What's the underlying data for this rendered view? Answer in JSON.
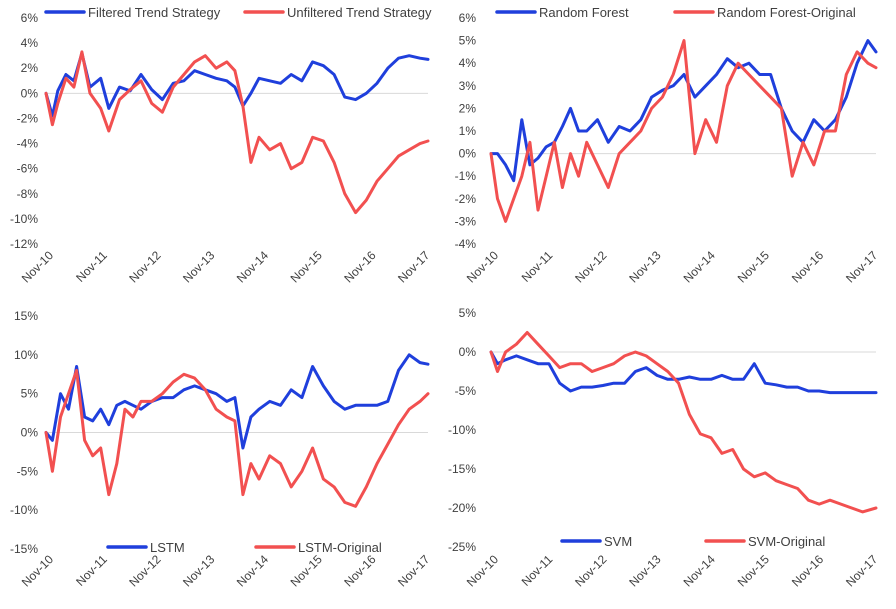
{
  "colors": {
    "blue": "#1f3fdc",
    "red": "#f25050",
    "zero_line": "#d9d9d9",
    "text": "#404040"
  },
  "chart_data": [
    {
      "type": "line",
      "title": "",
      "xlabel": "",
      "ylabel": "",
      "x_ticks": [
        "Nov-10",
        "Nov-11",
        "Nov-12",
        "Nov-13",
        "Nov-14",
        "Nov-15",
        "Nov-16",
        "Nov-17"
      ],
      "y_ticks": [
        "6%",
        "4%",
        "2%",
        "0%",
        "-2%",
        "-4%",
        "-6%",
        "-8%",
        "-10%",
        "-12%"
      ],
      "ylim": [
        -12,
        6
      ],
      "xlim": [
        2010.83,
        2017.95
      ],
      "legend_position": "top",
      "series": [
        {
          "name": "Filtered Trend Strategy",
          "color": "#1f3fdc",
          "x": [
            2010.83,
            2010.95,
            2011.05,
            2011.2,
            2011.35,
            2011.5,
            2011.65,
            2011.85,
            2012.0,
            2012.2,
            2012.4,
            2012.6,
            2012.8,
            2013.0,
            2013.2,
            2013.4,
            2013.6,
            2013.8,
            2014.0,
            2014.2,
            2014.35,
            2014.5,
            2014.65,
            2014.8,
            2015.0,
            2015.2,
            2015.4,
            2015.6,
            2015.8,
            2016.0,
            2016.2,
            2016.4,
            2016.6,
            2016.8,
            2017.0,
            2017.2,
            2017.4,
            2017.6,
            2017.8,
            2017.95
          ],
          "y": [
            0.0,
            -1.8,
            0.2,
            1.5,
            1.0,
            3.2,
            0.5,
            1.2,
            -1.2,
            0.5,
            0.2,
            1.5,
            0.3,
            -0.5,
            0.8,
            1.0,
            1.8,
            1.5,
            1.2,
            1.0,
            0.5,
            -1.0,
            0.0,
            1.2,
            1.0,
            0.8,
            1.5,
            1.0,
            2.5,
            2.2,
            1.5,
            -0.3,
            -0.5,
            0.0,
            0.8,
            2.0,
            2.8,
            3.0,
            2.8,
            2.7
          ]
        },
        {
          "name": "Unfiltered Trend Strategy",
          "color": "#f25050",
          "x": [
            2010.83,
            2010.95,
            2011.05,
            2011.2,
            2011.35,
            2011.5,
            2011.65,
            2011.85,
            2012.0,
            2012.2,
            2012.4,
            2012.6,
            2012.8,
            2013.0,
            2013.2,
            2013.4,
            2013.6,
            2013.8,
            2014.0,
            2014.2,
            2014.35,
            2014.5,
            2014.65,
            2014.8,
            2015.0,
            2015.2,
            2015.4,
            2015.6,
            2015.8,
            2016.0,
            2016.2,
            2016.4,
            2016.6,
            2016.8,
            2017.0,
            2017.2,
            2017.4,
            2017.6,
            2017.8,
            2017.95
          ],
          "y": [
            0.0,
            -2.5,
            -0.8,
            1.2,
            0.5,
            3.3,
            0.0,
            -1.2,
            -3.0,
            -0.5,
            0.3,
            1.0,
            -0.8,
            -1.5,
            0.5,
            1.5,
            2.5,
            3.0,
            2.0,
            2.5,
            1.8,
            -1.0,
            -5.5,
            -3.5,
            -4.5,
            -4.0,
            -6.0,
            -5.5,
            -3.5,
            -3.8,
            -5.5,
            -8.0,
            -9.5,
            -8.5,
            -7.0,
            -6.0,
            -5.0,
            -4.5,
            -4.0,
            -3.8
          ]
        }
      ]
    },
    {
      "type": "line",
      "title": "",
      "xlabel": "",
      "ylabel": "",
      "x_ticks": [
        "Nov-10",
        "Nov-11",
        "Nov-12",
        "Nov-13",
        "Nov-14",
        "Nov-15",
        "Nov-16",
        "Nov-17"
      ],
      "y_ticks": [
        "6%",
        "5%",
        "4%",
        "3%",
        "2%",
        "1%",
        "0%",
        "-1%",
        "-2%",
        "-3%",
        "-4%"
      ],
      "ylim": [
        -4,
        6
      ],
      "xlim": [
        2010.83,
        2017.95
      ],
      "legend_position": "top",
      "series": [
        {
          "name": "Random Forest",
          "color": "#1f3fdc",
          "x": [
            2010.83,
            2010.95,
            2011.1,
            2011.25,
            2011.4,
            2011.55,
            2011.7,
            2011.85,
            2012.0,
            2012.15,
            2012.3,
            2012.45,
            2012.6,
            2012.8,
            2013.0,
            2013.2,
            2013.4,
            2013.6,
            2013.8,
            2014.0,
            2014.2,
            2014.4,
            2014.6,
            2014.8,
            2015.0,
            2015.2,
            2015.4,
            2015.6,
            2015.8,
            2016.0,
            2016.2,
            2016.4,
            2016.6,
            2016.8,
            2017.0,
            2017.2,
            2017.4,
            2017.6,
            2017.8,
            2017.95
          ],
          "y": [
            0.0,
            0.0,
            -0.5,
            -1.2,
            1.5,
            -0.5,
            -0.2,
            0.3,
            0.5,
            1.2,
            2.0,
            1.0,
            1.0,
            1.5,
            0.5,
            1.2,
            1.0,
            1.5,
            2.5,
            2.8,
            3.0,
            3.5,
            2.5,
            3.0,
            3.5,
            4.2,
            3.8,
            4.0,
            3.5,
            3.5,
            2.0,
            1.0,
            0.5,
            1.5,
            1.0,
            1.5,
            2.5,
            4.0,
            5.0,
            4.5
          ]
        },
        {
          "name": "Random Forest-Original",
          "color": "#f25050",
          "x": [
            2010.83,
            2010.95,
            2011.1,
            2011.25,
            2011.4,
            2011.55,
            2011.7,
            2011.85,
            2012.0,
            2012.15,
            2012.3,
            2012.45,
            2012.6,
            2012.8,
            2013.0,
            2013.2,
            2013.4,
            2013.6,
            2013.8,
            2014.0,
            2014.2,
            2014.4,
            2014.6,
            2014.8,
            2015.0,
            2015.2,
            2015.4,
            2015.6,
            2015.8,
            2016.0,
            2016.2,
            2016.4,
            2016.6,
            2016.8,
            2017.0,
            2017.2,
            2017.4,
            2017.6,
            2017.8,
            2017.95
          ],
          "y": [
            0.0,
            -2.0,
            -3.0,
            -2.0,
            -1.0,
            0.5,
            -2.5,
            -1.0,
            0.5,
            -1.5,
            0.0,
            -1.0,
            0.5,
            -0.5,
            -1.5,
            0.0,
            0.5,
            1.0,
            2.0,
            2.5,
            3.5,
            5.0,
            0.0,
            1.5,
            0.5,
            3.0,
            4.0,
            3.5,
            3.0,
            2.5,
            2.0,
            -1.0,
            0.5,
            -0.5,
            1.0,
            1.0,
            3.5,
            4.5,
            4.0,
            3.8
          ]
        }
      ]
    },
    {
      "type": "line",
      "title": "",
      "xlabel": "",
      "ylabel": "",
      "x_ticks": [
        "Nov-10",
        "Nov-11",
        "Nov-12",
        "Nov-13",
        "Nov-14",
        "Nov-15",
        "Nov-16",
        "Nov-17"
      ],
      "y_ticks": [
        "15%",
        "10%",
        "5%",
        "0%",
        "-5%",
        "-10%",
        "-15%"
      ],
      "ylim": [
        -15,
        15
      ],
      "xlim": [
        2010.83,
        2017.95
      ],
      "legend_position": "bottom",
      "series": [
        {
          "name": "LSTM",
          "color": "#1f3fdc",
          "x": [
            2010.83,
            2010.95,
            2011.1,
            2011.25,
            2011.4,
            2011.55,
            2011.7,
            2011.85,
            2012.0,
            2012.15,
            2012.3,
            2012.45,
            2012.6,
            2012.8,
            2013.0,
            2013.2,
            2013.4,
            2013.6,
            2013.8,
            2014.0,
            2014.2,
            2014.35,
            2014.5,
            2014.65,
            2014.8,
            2015.0,
            2015.2,
            2015.4,
            2015.6,
            2015.8,
            2016.0,
            2016.2,
            2016.4,
            2016.6,
            2016.8,
            2017.0,
            2017.2,
            2017.4,
            2017.6,
            2017.8,
            2017.95
          ],
          "y": [
            0.0,
            -1.0,
            5.0,
            3.0,
            8.5,
            2.0,
            1.5,
            3.0,
            1.0,
            3.5,
            4.0,
            3.5,
            3.0,
            4.0,
            4.5,
            4.5,
            5.5,
            6.0,
            5.5,
            5.0,
            4.0,
            4.5,
            -2.0,
            2.0,
            3.0,
            4.0,
            3.5,
            5.5,
            4.5,
            8.5,
            6.0,
            4.0,
            3.0,
            3.5,
            3.5,
            3.5,
            4.0,
            8.0,
            10.0,
            9.0,
            8.8
          ]
        },
        {
          "name": "LSTM-Original",
          "color": "#f25050",
          "x": [
            2010.83,
            2010.95,
            2011.1,
            2011.25,
            2011.4,
            2011.55,
            2011.7,
            2011.85,
            2012.0,
            2012.15,
            2012.3,
            2012.45,
            2012.6,
            2012.8,
            2013.0,
            2013.2,
            2013.4,
            2013.6,
            2013.8,
            2014.0,
            2014.2,
            2014.35,
            2014.5,
            2014.65,
            2014.8,
            2015.0,
            2015.2,
            2015.4,
            2015.6,
            2015.8,
            2016.0,
            2016.2,
            2016.4,
            2016.6,
            2016.8,
            2017.0,
            2017.2,
            2017.4,
            2017.6,
            2017.8,
            2017.95
          ],
          "y": [
            0.0,
            -5.0,
            2.0,
            5.0,
            8.0,
            -1.0,
            -3.0,
            -2.0,
            -8.0,
            -4.0,
            3.0,
            2.0,
            4.0,
            4.0,
            5.0,
            6.5,
            7.5,
            7.0,
            5.5,
            3.0,
            2.0,
            1.5,
            -8.0,
            -4.0,
            -6.0,
            -3.0,
            -4.0,
            -7.0,
            -5.0,
            -2.0,
            -6.0,
            -7.0,
            -9.0,
            -9.5,
            -7.0,
            -4.0,
            -1.5,
            1.0,
            3.0,
            4.0,
            5.0
          ]
        }
      ]
    },
    {
      "type": "line",
      "title": "",
      "xlabel": "",
      "ylabel": "",
      "x_ticks": [
        "Nov-10",
        "Nov-11",
        "Nov-12",
        "Nov-13",
        "Nov-14",
        "Nov-15",
        "Nov-16",
        "Nov-17"
      ],
      "y_ticks": [
        "5%",
        "0%",
        "-5%",
        "-10%",
        "-15%",
        "-20%",
        "-25%"
      ],
      "ylim": [
        -25,
        5
      ],
      "xlim": [
        2010.83,
        2017.95
      ],
      "legend_position": "bottom",
      "series": [
        {
          "name": "SVM",
          "color": "#1f3fdc",
          "x": [
            2010.83,
            2010.95,
            2011.1,
            2011.3,
            2011.5,
            2011.7,
            2011.9,
            2012.1,
            2012.3,
            2012.5,
            2012.7,
            2012.9,
            2013.1,
            2013.3,
            2013.5,
            2013.7,
            2013.9,
            2014.1,
            2014.3,
            2014.5,
            2014.7,
            2014.9,
            2015.1,
            2015.3,
            2015.5,
            2015.7,
            2015.9,
            2016.1,
            2016.3,
            2016.5,
            2016.7,
            2016.9,
            2017.1,
            2017.3,
            2017.5,
            2017.7,
            2017.95
          ],
          "y": [
            0.0,
            -1.5,
            -1.0,
            -0.5,
            -1.0,
            -1.5,
            -1.5,
            -4.0,
            -5.0,
            -4.5,
            -4.5,
            -4.3,
            -4.0,
            -4.0,
            -2.5,
            -2.0,
            -3.0,
            -3.5,
            -3.5,
            -3.2,
            -3.5,
            -3.5,
            -3.0,
            -3.5,
            -3.5,
            -1.5,
            -4.0,
            -4.2,
            -4.5,
            -4.5,
            -5.0,
            -5.0,
            -5.2,
            -5.2,
            -5.2,
            -5.2,
            -5.2
          ]
        },
        {
          "name": "SVM-Original",
          "color": "#f25050",
          "x": [
            2010.83,
            2010.95,
            2011.1,
            2011.3,
            2011.5,
            2011.7,
            2011.9,
            2012.1,
            2012.3,
            2012.5,
            2012.7,
            2012.9,
            2013.1,
            2013.3,
            2013.5,
            2013.7,
            2013.9,
            2014.1,
            2014.3,
            2014.5,
            2014.7,
            2014.9,
            2015.1,
            2015.3,
            2015.5,
            2015.7,
            2015.9,
            2016.1,
            2016.3,
            2016.5,
            2016.7,
            2016.9,
            2017.1,
            2017.3,
            2017.5,
            2017.7,
            2017.95
          ],
          "y": [
            0.0,
            -2.5,
            0.0,
            1.0,
            2.5,
            1.0,
            -0.5,
            -2.0,
            -1.5,
            -1.5,
            -2.5,
            -2.0,
            -1.5,
            -0.5,
            0.0,
            -0.5,
            -1.5,
            -2.5,
            -4.0,
            -8.0,
            -10.5,
            -11.0,
            -13.0,
            -12.5,
            -15.0,
            -16.0,
            -15.5,
            -16.5,
            -17.0,
            -17.5,
            -19.0,
            -19.5,
            -19.0,
            -19.5,
            -20.0,
            -20.5,
            -20.0
          ]
        }
      ]
    }
  ]
}
